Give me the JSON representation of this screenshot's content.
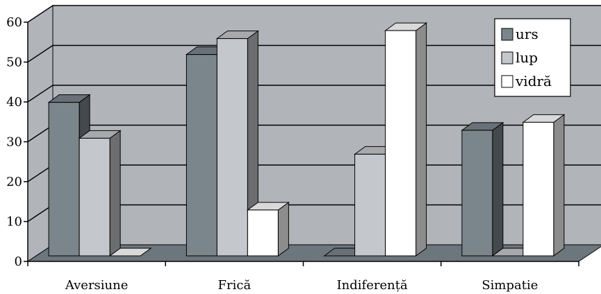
{
  "chart_data": {
    "type": "bar",
    "style": "3d-clustered-column",
    "categories": [
      "Aversiune",
      "Frică",
      "Indiferență",
      "Simpatie"
    ],
    "series": [
      {
        "name": "urs",
        "values": [
          38.5,
          50.5,
          0,
          31.5
        ],
        "color": "#7a858c"
      },
      {
        "name": "lup",
        "values": [
          29.5,
          54.5,
          25.5,
          0
        ],
        "color": "#c4c7cb"
      },
      {
        "name": "vidră",
        "values": [
          0,
          11.5,
          56.5,
          33.5
        ],
        "color": "#ffffff"
      }
    ],
    "y_ticks": [
      "0",
      "10",
      "20",
      "30",
      "40",
      "50",
      "60"
    ],
    "ylim": [
      0,
      60
    ],
    "grid": true,
    "legend_position": "top-right",
    "colors": {
      "wall": "#b1b5ba",
      "floor": "#6c767d",
      "gridline": "#000000"
    }
  }
}
